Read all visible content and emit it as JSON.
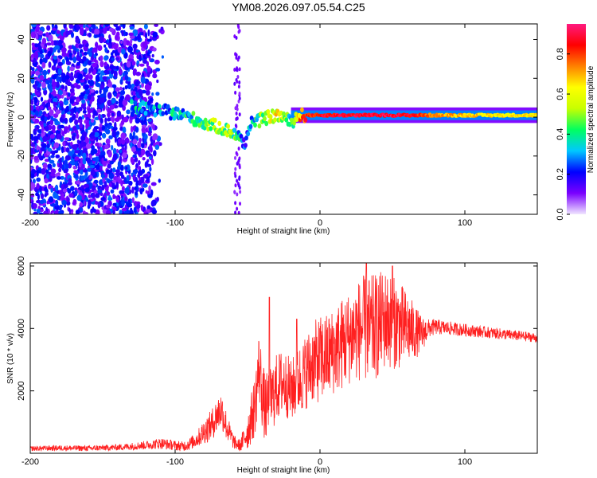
{
  "title": "YM08.2026.097.05.54.C25",
  "chart_data": [
    {
      "type": "heatmap",
      "xlabel": "Height of straight line (km)",
      "ylabel": "Frequency (Hz)",
      "xlim": [
        -200,
        150
      ],
      "ylim": [
        -50,
        48
      ],
      "x_ticks": [
        -200,
        -100,
        0,
        100
      ],
      "x_tick_labels": [
        "-200",
        "-100",
        "0",
        "100"
      ],
      "y_ticks": [
        -40,
        -20,
        0,
        20,
        40
      ],
      "y_tick_labels": [
        "-40",
        "-20",
        "0",
        "20",
        "40"
      ],
      "colorbar": {
        "label": "Normalized spectral amplitude",
        "range": [
          0,
          0.95
        ],
        "ticks": [
          0.0,
          0.2,
          0.4,
          0.6,
          0.8
        ],
        "tick_labels": [
          "0.0",
          "0.2",
          "0.4",
          "0.6",
          "0.8"
        ],
        "colors": [
          "#f0e6ff",
          "#7a00ff",
          "#0000ff",
          "#00c8ff",
          "#00ff60",
          "#c8ff00",
          "#ffff00",
          "#ff8000",
          "#ff0000",
          "#ff1a80"
        ]
      },
      "trace": {
        "x": [
          -130,
          -115,
          -100,
          -90,
          -80,
          -70,
          -60,
          -56,
          -52,
          -48,
          -45,
          -40,
          -35,
          -30,
          -25,
          -20,
          -15,
          -10,
          0,
          20,
          40,
          60,
          80,
          100,
          120,
          150
        ],
        "frequency": [
          5,
          4,
          2,
          0,
          -3,
          -5,
          -8,
          -10,
          -15,
          -2,
          -3,
          -1,
          0,
          1,
          0,
          -3,
          1,
          1,
          1,
          1,
          1,
          1,
          1,
          1,
          1,
          1
        ],
        "amplitude": [
          0.3,
          0.3,
          0.32,
          0.35,
          0.45,
          0.5,
          0.45,
          0.35,
          0.25,
          0.3,
          0.38,
          0.5,
          0.55,
          0.6,
          0.5,
          0.4,
          0.7,
          0.8,
          0.85,
          0.88,
          0.9,
          0.88,
          0.72,
          0.68,
          0.65,
          0.62
        ]
      }
    },
    {
      "type": "line",
      "xlabel": "Height of straight line (km)",
      "ylabel": "SNR (10 * v/v)",
      "xlim": [
        -200,
        150
      ],
      "ylim": [
        0,
        6100
      ],
      "x_ticks": [
        -200,
        -100,
        0,
        100
      ],
      "x_tick_labels": [
        "-200",
        "-100",
        "0",
        "100"
      ],
      "y_ticks": [
        2000,
        4000,
        6000
      ],
      "y_tick_labels": [
        "2000",
        "4000",
        "6000"
      ],
      "color": "#ff2020",
      "series": [
        {
          "name": "SNR",
          "x": [
            -200,
            -180,
            -160,
            -140,
            -120,
            -110,
            -100,
            -95,
            -90,
            -85,
            -80,
            -75,
            -70,
            -68,
            -66,
            -64,
            -62,
            -60,
            -58,
            -55,
            -50,
            -45,
            -42,
            -40,
            -38,
            -35,
            -30,
            -25,
            -20,
            -15,
            -10,
            -5,
            0,
            5,
            10,
            15,
            20,
            25,
            30,
            35,
            40,
            45,
            50,
            55,
            60,
            65,
            70,
            75,
            80,
            90,
            100,
            110,
            120,
            130,
            140,
            150
          ],
          "value": [
            150,
            170,
            160,
            190,
            260,
            320,
            250,
            220,
            300,
            450,
            700,
            900,
            1300,
            1400,
            1100,
            800,
            600,
            400,
            300,
            250,
            700,
            1500,
            2800,
            2000,
            1400,
            1600,
            2100,
            2300,
            2000,
            2300,
            2600,
            2900,
            3000,
            3100,
            3300,
            3500,
            3700,
            3900,
            4000,
            3900,
            4100,
            4300,
            4200,
            4100,
            4000,
            3900,
            3800,
            4000,
            4050,
            4000,
            3950,
            3900,
            3850,
            3800,
            3750,
            3700
          ],
          "spread": [
            80,
            90,
            90,
            100,
            140,
            180,
            160,
            160,
            200,
            260,
            400,
            500,
            600,
            600,
            550,
            450,
            350,
            250,
            200,
            200,
            600,
            1000,
            1200,
            1200,
            1100,
            1100,
            1100,
            1100,
            1000,
            1100,
            1200,
            1300,
            1400,
            1400,
            1400,
            1500,
            1500,
            1600,
            1700,
            1800,
            1700,
            1600,
            1500,
            1400,
            1200,
            900,
            600,
            300,
            250,
            220,
            200,
            190,
            180,
            170,
            160,
            150
          ],
          "peaks_x": [
            -35,
            -16,
            32,
            50
          ],
          "peaks_value": [
            5000,
            4300,
            6100,
            6000
          ]
        }
      ]
    }
  ]
}
